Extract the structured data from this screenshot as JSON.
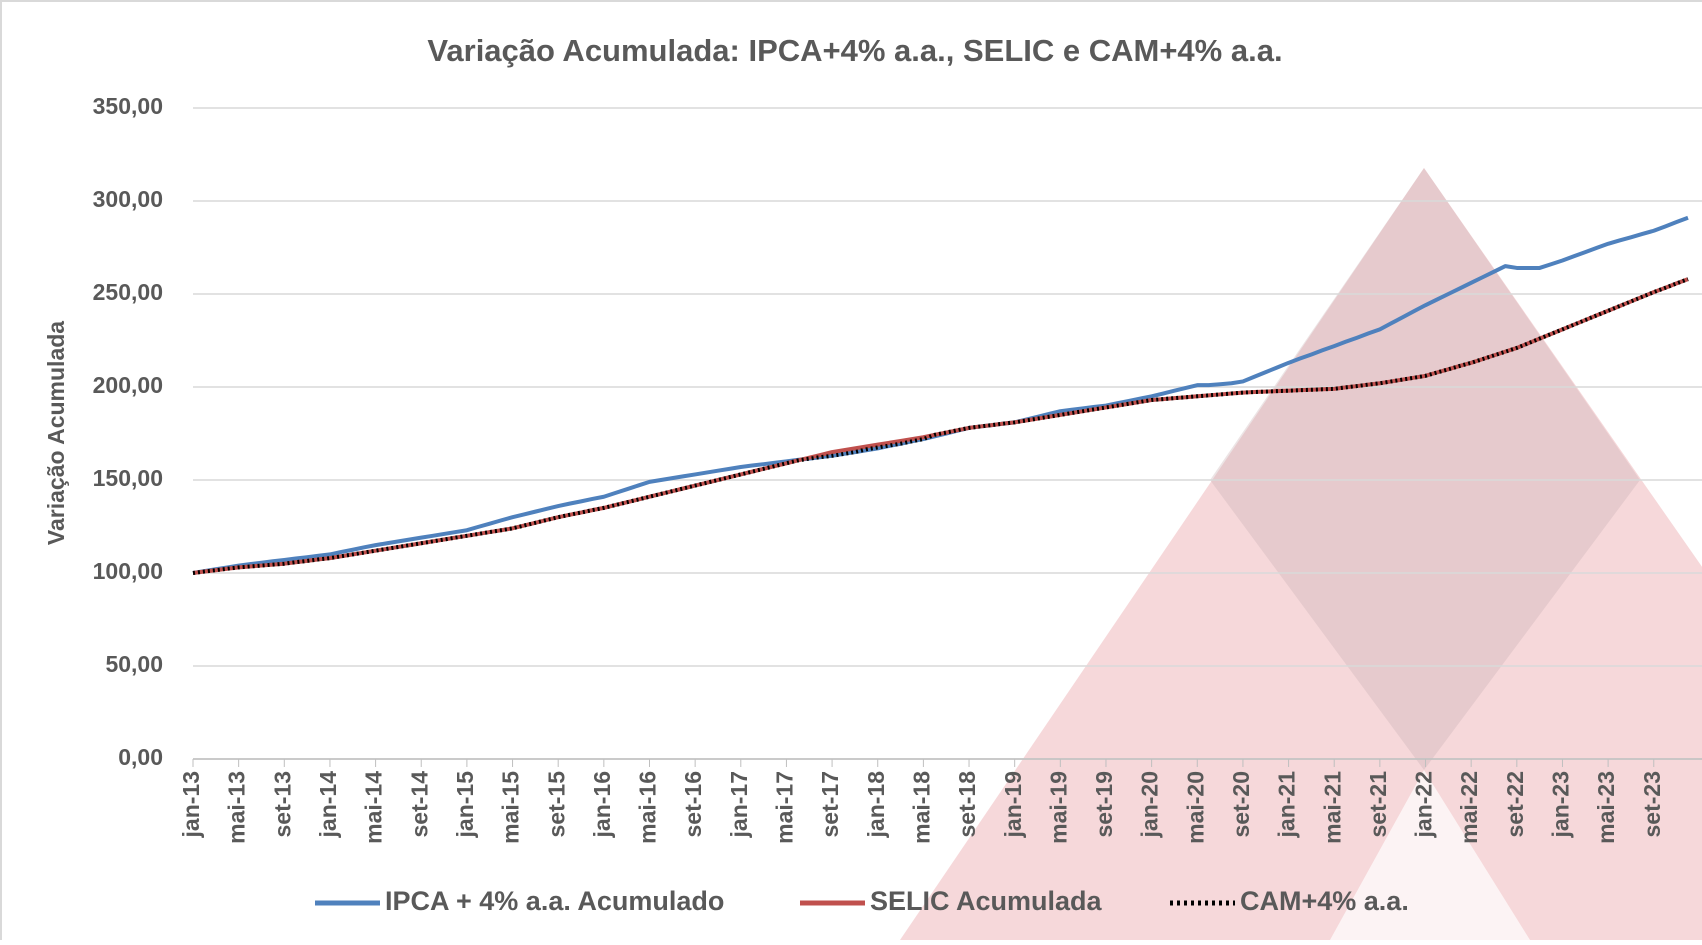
{
  "chart_data": {
    "type": "line",
    "title": "Variação Acumulada: IPCA+4% a.a., SELIC e CAM+4% a.a.",
    "y_label": "Variação Acumulada",
    "categories": [
      "jan-13",
      null,
      null,
      null,
      "mai-13",
      null,
      null,
      null,
      "set-13",
      null,
      null,
      null,
      "jan-14",
      null,
      null,
      null,
      "mai-14",
      null,
      null,
      null,
      "set-14",
      null,
      null,
      null,
      "jan-15",
      null,
      null,
      null,
      "mai-15",
      null,
      null,
      null,
      "set-15",
      null,
      null,
      null,
      "jan-16",
      null,
      null,
      null,
      "mai-16",
      null,
      null,
      null,
      "set-16",
      null,
      null,
      null,
      "jan-17",
      null,
      null,
      null,
      "mai-17",
      null,
      null,
      null,
      "set-17",
      null,
      null,
      null,
      "jan-18",
      null,
      null,
      null,
      "mai-18",
      null,
      null,
      null,
      "set-18",
      null,
      null,
      null,
      "jan-19",
      null,
      null,
      null,
      "mai-19",
      null,
      null,
      null,
      "set-19",
      null,
      null,
      null,
      "jan-20",
      null,
      null,
      null,
      "mai-20",
      null,
      null,
      null,
      "set-20",
      null,
      null,
      null,
      "jan-21",
      null,
      null,
      null,
      "mai-21",
      null,
      null,
      null,
      "set-21",
      null,
      null,
      null,
      "jan-22",
      null,
      null,
      null,
      "mai-22",
      null,
      null,
      null,
      "set-22",
      null,
      null,
      null,
      "jan-23",
      null,
      null,
      null,
      "mai-23",
      null,
      null,
      null,
      "set-23",
      null,
      null,
      null
    ],
    "series": [
      {
        "name": "IPCA + 4% a.a. Acumulado",
        "color": "#4f81bd",
        "line_style": "solid",
        "values": [
          100,
          101,
          102,
          103,
          104,
          104.8,
          105.5,
          106.3,
          107,
          107.8,
          108.5,
          109.3,
          110,
          111.3,
          112.5,
          113.8,
          115,
          116,
          117,
          118,
          119,
          120,
          121,
          122,
          123,
          124.8,
          126.5,
          128.3,
          130,
          131.5,
          133,
          134.5,
          136,
          137.3,
          138.5,
          139.8,
          141,
          143,
          145,
          147,
          149,
          150,
          151,
          152,
          153,
          154,
          155,
          156,
          157,
          157.8,
          158.5,
          159.3,
          160,
          160.8,
          161.5,
          162.3,
          163,
          164,
          165,
          166,
          167,
          168.3,
          169.5,
          170.8,
          172,
          173.5,
          175,
          176.5,
          178,
          178.8,
          179.5,
          180.3,
          181,
          182.5,
          184,
          185.5,
          187,
          187.8,
          188.5,
          189.3,
          190,
          191.3,
          192.5,
          193.8,
          195,
          196.5,
          198,
          199.5,
          201,
          201,
          201.5,
          202,
          203,
          205.5,
          208,
          210.5,
          213,
          215.3,
          217.5,
          219.8,
          222,
          224.3,
          226.5,
          228.8,
          231,
          234.3,
          237.5,
          240.8,
          244,
          247,
          250,
          253,
          256,
          259,
          262,
          265,
          264,
          264,
          264,
          266,
          268,
          270.3,
          272.5,
          274.8,
          277,
          278.8,
          280.5,
          282.3,
          284,
          286.3,
          288.7,
          291
        ]
      },
      {
        "name": "SELIC Acumulada",
        "color": "#c0504d",
        "line_style": "solid",
        "values": [
          100,
          100.8,
          101.5,
          102.3,
          103,
          103.5,
          104,
          104.5,
          105,
          105.8,
          106.5,
          107.3,
          108,
          109,
          110,
          111,
          112,
          113,
          114,
          115,
          116,
          117,
          118,
          119,
          120,
          121,
          122,
          123,
          124,
          125.5,
          127,
          128.5,
          130,
          131.3,
          132.5,
          133.8,
          135,
          136.5,
          138,
          139.5,
          141,
          142.5,
          144,
          145.5,
          147,
          148.5,
          150,
          151.5,
          153,
          154.5,
          156,
          157.5,
          159,
          160.5,
          162,
          163.5,
          165,
          166,
          167,
          168,
          169,
          170,
          171,
          172,
          173,
          174.3,
          175.5,
          176.8,
          178,
          178.8,
          179.5,
          180.3,
          181,
          182,
          183,
          184,
          185,
          186,
          187,
          188,
          189,
          190,
          191,
          192,
          193,
          193.5,
          194,
          194.5,
          195,
          195.5,
          196,
          196.5,
          197,
          197.3,
          197.5,
          197.8,
          198,
          198.3,
          198.5,
          198.8,
          199,
          199.8,
          200.5,
          201.3,
          202,
          203,
          204,
          205,
          206,
          207.8,
          209.5,
          211.3,
          213,
          215,
          217,
          219,
          221,
          223.5,
          226,
          228.5,
          231,
          233.5,
          236,
          238.5,
          241,
          243.5,
          246,
          248.5,
          251,
          253.3,
          255.7,
          258
        ]
      },
      {
        "name": "CAM+4% a.a.",
        "color": "#000000",
        "line_style": "dotted",
        "values": [
          100,
          100.8,
          101.5,
          102.3,
          103,
          103.5,
          104,
          104.5,
          105,
          105.8,
          106.5,
          107.3,
          108,
          109,
          110,
          111,
          112,
          113,
          114,
          115,
          116,
          117,
          118,
          119,
          120,
          121,
          122,
          123,
          124,
          125.5,
          127,
          128.5,
          130,
          131.3,
          132.5,
          133.8,
          135,
          136.5,
          138,
          139.5,
          141,
          142.5,
          144,
          145.5,
          147,
          148.5,
          150,
          151.5,
          153,
          154.5,
          156,
          157.5,
          159,
          160.5,
          161.5,
          162.3,
          163,
          164,
          165,
          166.5,
          167.5,
          168.5,
          169.5,
          170.8,
          172,
          174.3,
          175.5,
          176.8,
          178,
          178.8,
          179.5,
          180.3,
          181,
          182,
          183,
          184,
          185,
          186,
          187,
          188,
          189,
          190,
          191,
          192,
          193,
          193.5,
          194,
          194.5,
          195,
          195.5,
          196,
          196.5,
          197,
          197.3,
          197.5,
          197.8,
          198,
          198.3,
          198.5,
          198.8,
          199,
          199.8,
          200.5,
          201.3,
          202,
          203,
          204,
          205,
          206,
          207.8,
          209.5,
          211.3,
          213,
          215,
          217,
          219,
          221,
          223.5,
          226,
          228.5,
          231,
          233.5,
          236,
          238.5,
          241,
          243.5,
          246,
          248.5,
          251,
          253.3,
          255.7,
          258
        ]
      }
    ],
    "ylim": [
      0,
      350
    ],
    "yticks": [
      {
        "value": 0,
        "label": "0,00"
      },
      {
        "value": 50,
        "label": "50,00"
      },
      {
        "value": 100,
        "label": "100,00"
      },
      {
        "value": 150,
        "label": "150,00"
      },
      {
        "value": 200,
        "label": "200,00"
      },
      {
        "value": 250,
        "label": "250,00"
      },
      {
        "value": 300,
        "label": "300,00"
      },
      {
        "value": 350,
        "label": "350,00"
      }
    ],
    "grid": true,
    "legend": "bottom"
  }
}
